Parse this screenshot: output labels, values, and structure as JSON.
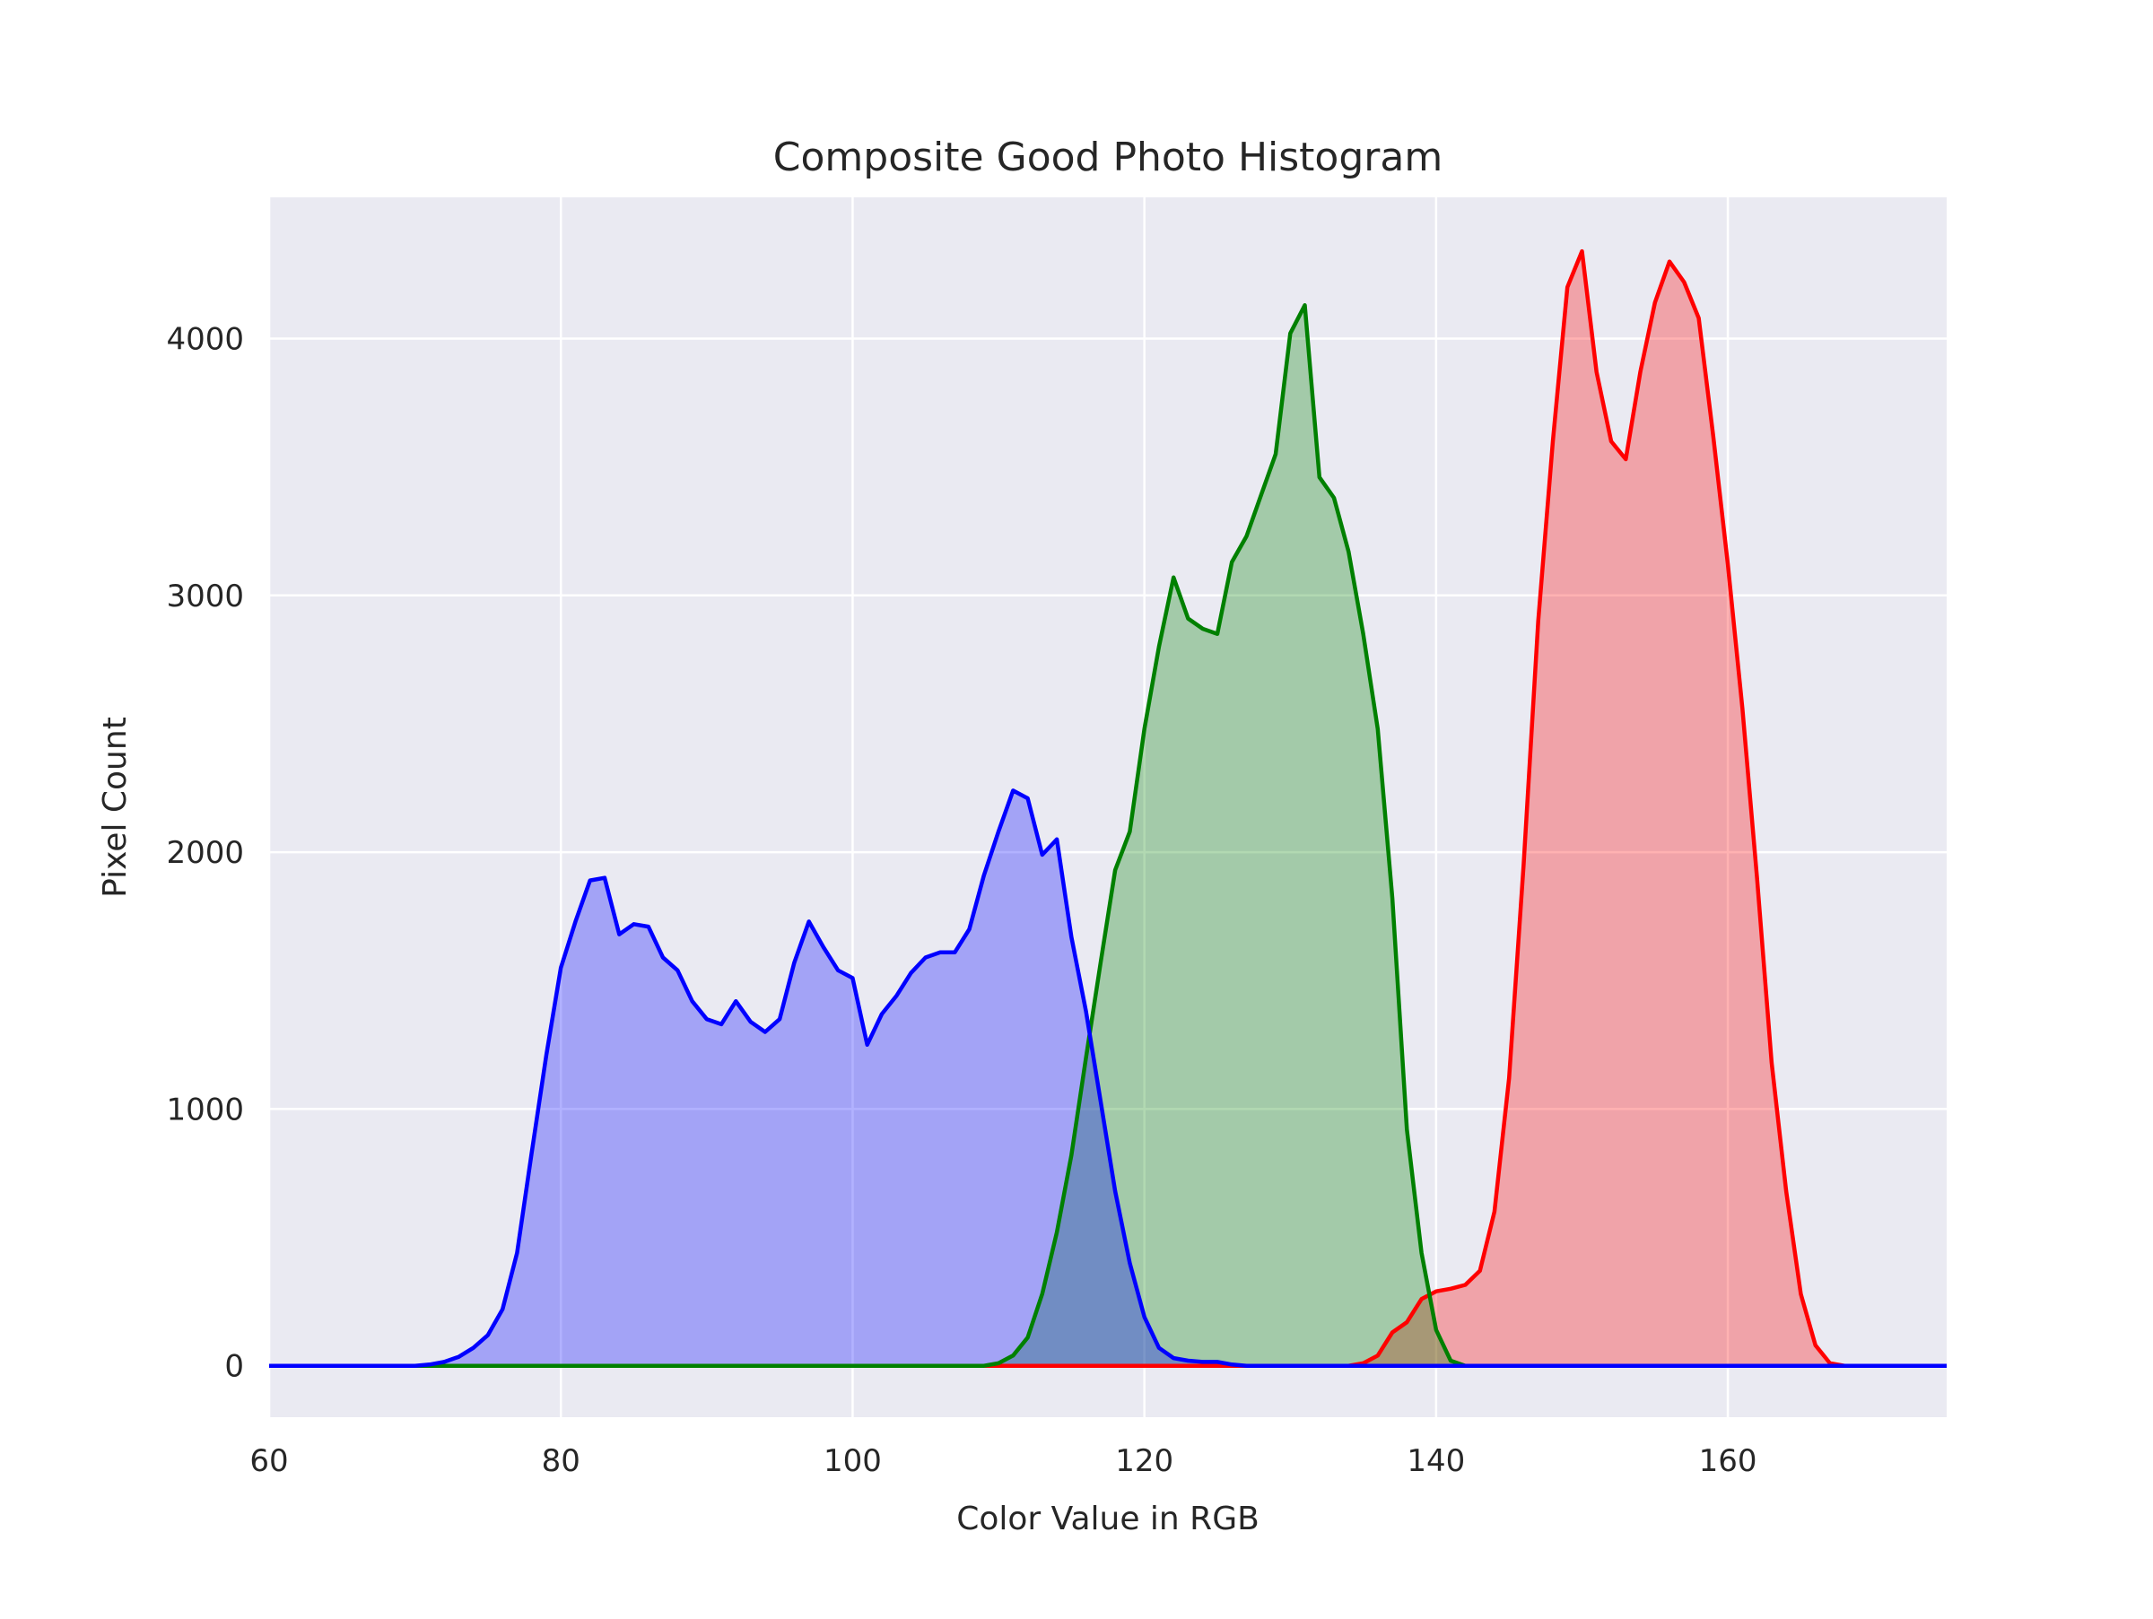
{
  "chart_data": {
    "type": "area",
    "title": "Composite Good Photo Histogram",
    "xlabel": "Color Value in RGB",
    "ylabel": "Pixel Count",
    "xlim": [
      60,
      175
    ],
    "ylim": [
      -200,
      4550
    ],
    "xticks": [
      60,
      80,
      100,
      120,
      140,
      160
    ],
    "yticks": [
      0,
      1000,
      2000,
      3000,
      4000
    ],
    "grid": true,
    "background_color": "#eaeaf2",
    "grid_color": "#ffffff",
    "series": [
      {
        "color": "#ff0000",
        "fill_opacity": 0.3,
        "x": [
          60,
          134,
          135,
          136,
          137,
          138,
          139,
          140,
          141,
          142,
          143,
          144,
          145,
          146,
          147,
          148,
          149,
          150,
          151,
          152,
          153,
          154,
          155,
          156,
          157,
          158,
          159,
          160,
          161,
          162,
          163,
          164,
          165,
          166,
          167,
          168,
          175
        ],
        "y": [
          0,
          0,
          10,
          40,
          130,
          170,
          260,
          290,
          300,
          315,
          370,
          600,
          1120,
          1950,
          2900,
          3600,
          4200,
          4340,
          3870,
          3600,
          3530,
          3870,
          4140,
          4300,
          4220,
          4080,
          3620,
          3120,
          2560,
          1900,
          1180,
          680,
          280,
          80,
          10,
          0,
          0
        ]
      },
      {
        "color": "#008000",
        "fill_opacity": 0.3,
        "x": [
          60,
          109,
          110,
          111,
          112,
          113,
          114,
          115,
          116,
          117,
          118,
          119,
          120,
          121,
          122,
          123,
          124,
          125,
          126,
          127,
          128,
          129,
          130,
          131,
          132,
          133,
          134,
          135,
          136,
          137,
          138,
          139,
          140,
          141,
          142,
          175
        ],
        "y": [
          0,
          0,
          10,
          40,
          110,
          280,
          520,
          820,
          1200,
          1570,
          1930,
          2080,
          2480,
          2800,
          3070,
          2910,
          2870,
          2850,
          3130,
          3230,
          3390,
          3550,
          4020,
          4130,
          3460,
          3380,
          3170,
          2850,
          2480,
          1820,
          920,
          440,
          140,
          20,
          0,
          0
        ]
      },
      {
        "color": "#0000ff",
        "fill_opacity": 0.3,
        "x": [
          60,
          70,
          71,
          72,
          73,
          74,
          75,
          76,
          77,
          78,
          79,
          80,
          81,
          82,
          83,
          84,
          85,
          86,
          87,
          88,
          89,
          90,
          91,
          92,
          93,
          94,
          95,
          96,
          97,
          98,
          99,
          100,
          101,
          102,
          103,
          104,
          105,
          106,
          107,
          108,
          109,
          110,
          111,
          112,
          113,
          114,
          115,
          116,
          117,
          118,
          119,
          120,
          121,
          122,
          123,
          124,
          125,
          126,
          127,
          128,
          175
        ],
        "y": [
          0,
          0,
          5,
          15,
          35,
          70,
          120,
          220,
          440,
          830,
          1210,
          1550,
          1730,
          1890,
          1900,
          1680,
          1720,
          1710,
          1590,
          1540,
          1420,
          1350,
          1330,
          1420,
          1340,
          1300,
          1350,
          1570,
          1730,
          1630,
          1540,
          1510,
          1250,
          1370,
          1440,
          1530,
          1590,
          1610,
          1610,
          1700,
          1910,
          2080,
          2240,
          2210,
          1990,
          2050,
          1670,
          1380,
          1030,
          680,
          400,
          190,
          70,
          30,
          20,
          15,
          15,
          5,
          0,
          0,
          0
        ]
      }
    ]
  }
}
